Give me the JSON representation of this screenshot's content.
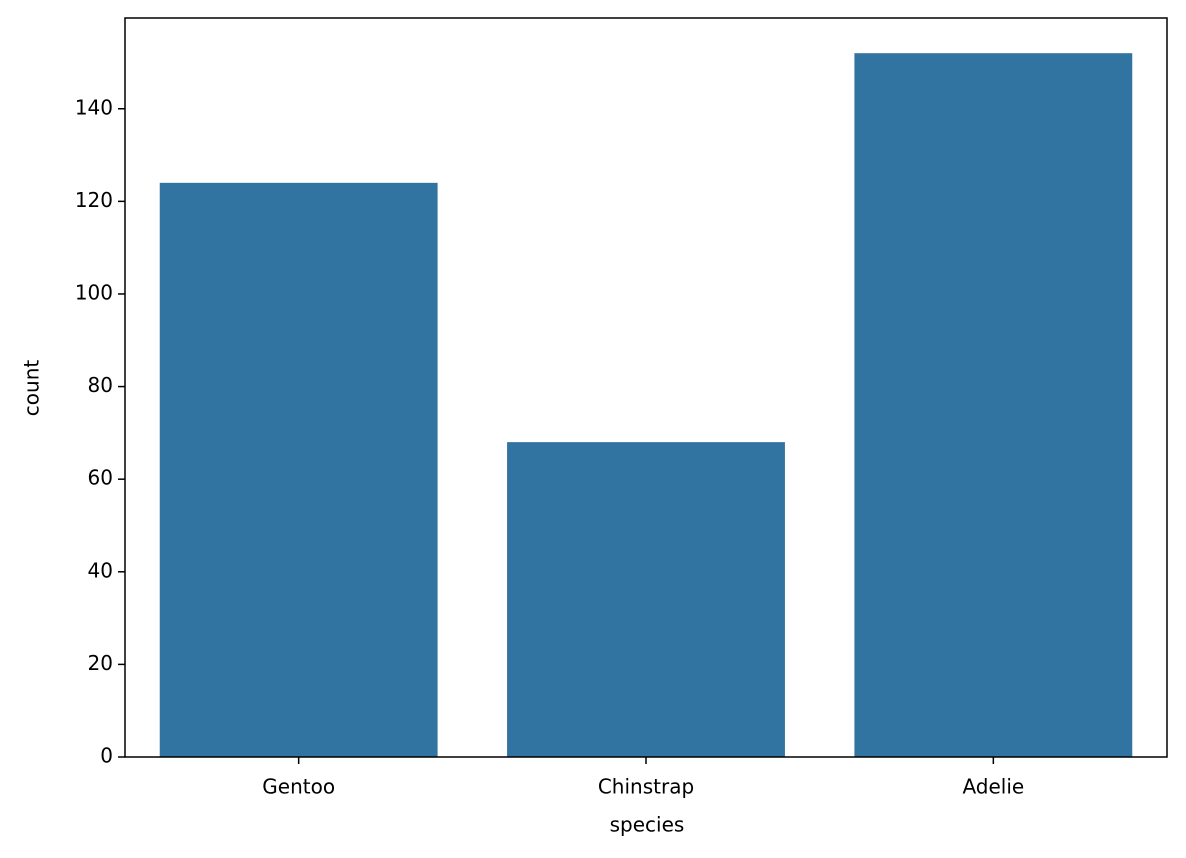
{
  "chart_data": {
    "type": "bar",
    "categories": [
      "Gentoo",
      "Chinstrap",
      "Adelie"
    ],
    "values": [
      124,
      68,
      152
    ],
    "color": "#3274a1",
    "xlabel": "species",
    "ylabel": "count",
    "ylim": [
      0,
      159.6
    ],
    "yticks": [
      0,
      20,
      40,
      60,
      80,
      100,
      120,
      140
    ],
    "grid": false
  }
}
